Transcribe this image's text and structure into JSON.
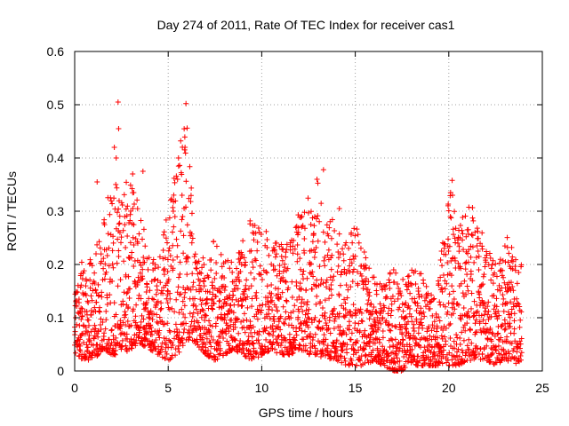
{
  "chart_data": {
    "type": "scatter",
    "title": "Day 274 of 2011, Rate Of TEC Index for receiver cas1",
    "xlabel": "GPS time / hours",
    "ylabel": "ROTI / TECUs",
    "xlim": [
      0,
      25
    ],
    "ylim": [
      0,
      0.6
    ],
    "x_ticks": [
      0,
      5,
      10,
      15,
      20,
      25
    ],
    "x_tick_labels": [
      "0",
      "5",
      "10",
      "15",
      "20",
      "25"
    ],
    "y_ticks": [
      0,
      0.1,
      0.2,
      0.3,
      0.4,
      0.5,
      0.6
    ],
    "y_tick_labels": [
      "0",
      "0.1",
      "0.2",
      "0.3",
      "0.4",
      "0.5",
      "0.6"
    ],
    "grid": true,
    "marker": "+",
    "marker_color": "#ff0000",
    "series": [
      {
        "name": "ROTI",
        "envelope_hours": [
          0,
          0.5,
          1,
          1.5,
          2,
          2.5,
          3,
          3.5,
          4,
          4.5,
          5,
          5.5,
          6,
          6.5,
          7,
          7.5,
          8,
          8.5,
          9,
          9.5,
          10,
          10.5,
          11,
          11.5,
          12,
          12.5,
          13,
          13.5,
          14,
          14.5,
          15,
          15.5,
          16,
          16.5,
          17,
          17.5,
          18,
          18.5,
          19,
          19.5,
          20,
          20.5,
          21,
          21.5,
          22,
          22.5,
          23,
          23.5,
          23.9
        ],
        "envelope_min": [
          0.03,
          0.02,
          0.02,
          0.04,
          0.03,
          0.03,
          0.04,
          0.05,
          0.04,
          0.03,
          0.02,
          0.03,
          0.06,
          0.05,
          0.03,
          0.02,
          0.03,
          0.04,
          0.03,
          0.02,
          0.03,
          0.04,
          0.03,
          0.03,
          0.04,
          0.03,
          0.03,
          0.02,
          0.02,
          0.01,
          0.01,
          0.01,
          0.02,
          0.01,
          0.0,
          0.0,
          0.01,
          0.01,
          0.01,
          0.01,
          0.01,
          0.01,
          0.02,
          0.02,
          0.02,
          0.01,
          0.02,
          0.01,
          0.02
        ],
        "envelope_max": [
          0.16,
          0.23,
          0.2,
          0.3,
          0.36,
          0.34,
          0.37,
          0.3,
          0.22,
          0.21,
          0.31,
          0.4,
          0.5,
          0.22,
          0.21,
          0.25,
          0.22,
          0.2,
          0.26,
          0.29,
          0.27,
          0.26,
          0.24,
          0.25,
          0.3,
          0.33,
          0.37,
          0.3,
          0.28,
          0.26,
          0.28,
          0.23,
          0.18,
          0.16,
          0.2,
          0.17,
          0.19,
          0.19,
          0.14,
          0.19,
          0.36,
          0.26,
          0.33,
          0.29,
          0.25,
          0.2,
          0.27,
          0.22,
          0.2
        ],
        "outliers": [
          [
            2.32,
            0.505
          ],
          [
            2.35,
            0.455
          ],
          [
            2.12,
            0.42
          ],
          [
            2.22,
            0.4
          ],
          [
            5.95,
            0.502
          ],
          [
            5.9,
            0.42
          ],
          [
            5.55,
            0.4
          ],
          [
            5.5,
            0.36
          ],
          [
            3.65,
            0.375
          ],
          [
            3.1,
            0.37
          ],
          [
            13.3,
            0.378
          ],
          [
            14.15,
            0.305
          ],
          [
            20.18,
            0.358
          ],
          [
            20.2,
            0.33
          ],
          [
            1.2,
            0.355
          ]
        ]
      }
    ]
  }
}
